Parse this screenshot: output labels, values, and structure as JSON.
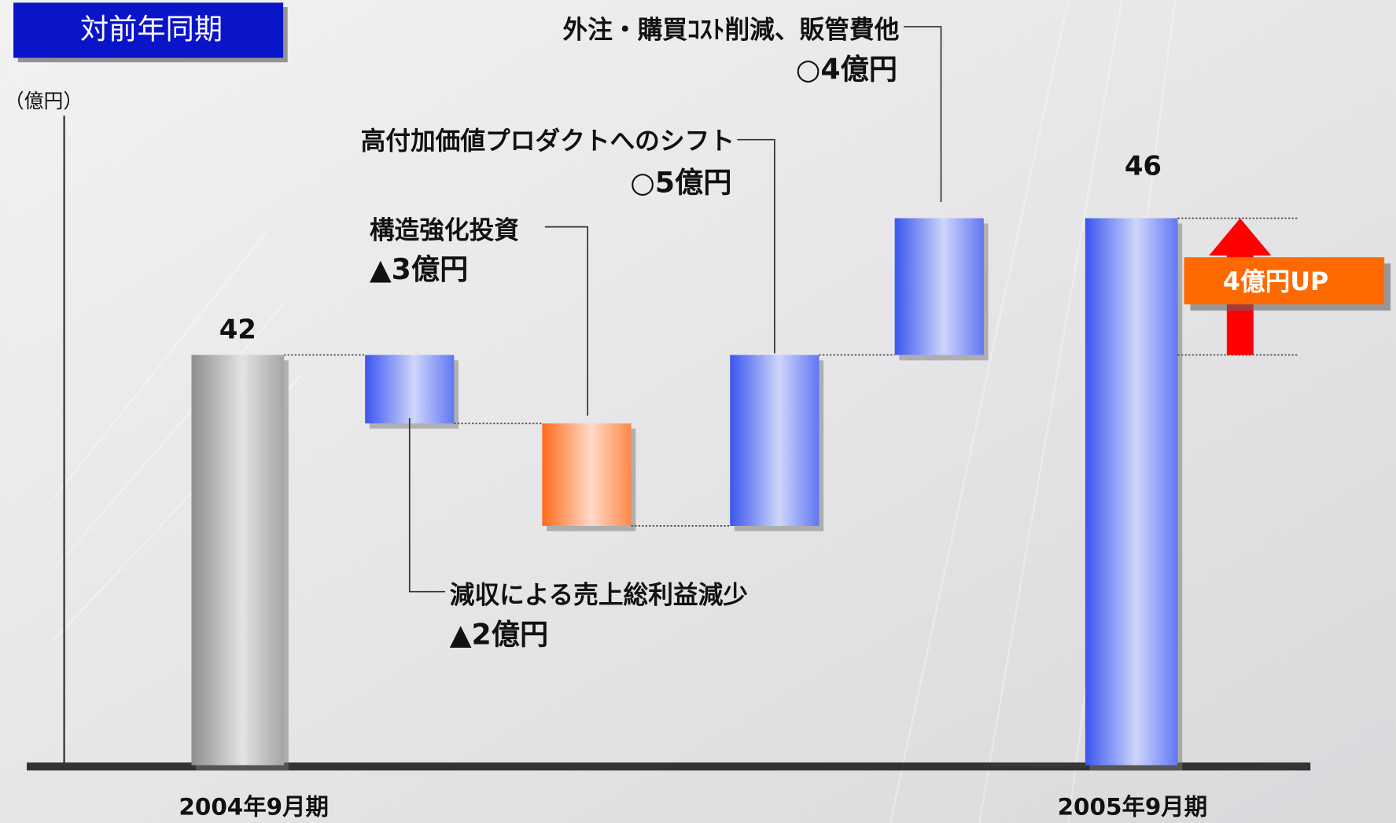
{
  "chart_data": {
    "type": "waterfall",
    "title": "対前年同期",
    "y_unit_label": "（億円）",
    "categories": [
      "2004年9月期",
      "減収による売上総利益減少",
      "構造強化投資",
      "高付加価値プロダクトへのシフト",
      "外注・購買ｺｽﾄ削減、販管費他",
      "2005年9月期"
    ],
    "measure": [
      "total",
      "relative",
      "relative",
      "relative",
      "relative",
      "total"
    ],
    "values": [
      42,
      -2,
      -3,
      5,
      4,
      46
    ],
    "value_labels": [
      "42",
      "▲2億円",
      "▲3億円",
      "○5億円",
      "○4億円",
      "46"
    ],
    "colors": [
      "#8e8e8e",
      "#3a55f0",
      "#ff6a1a",
      "#3a55f0",
      "#3a55f0",
      "#3a55f0"
    ],
    "ylim": [
      30,
      49
    ],
    "annotation": "4億円UP"
  }
}
